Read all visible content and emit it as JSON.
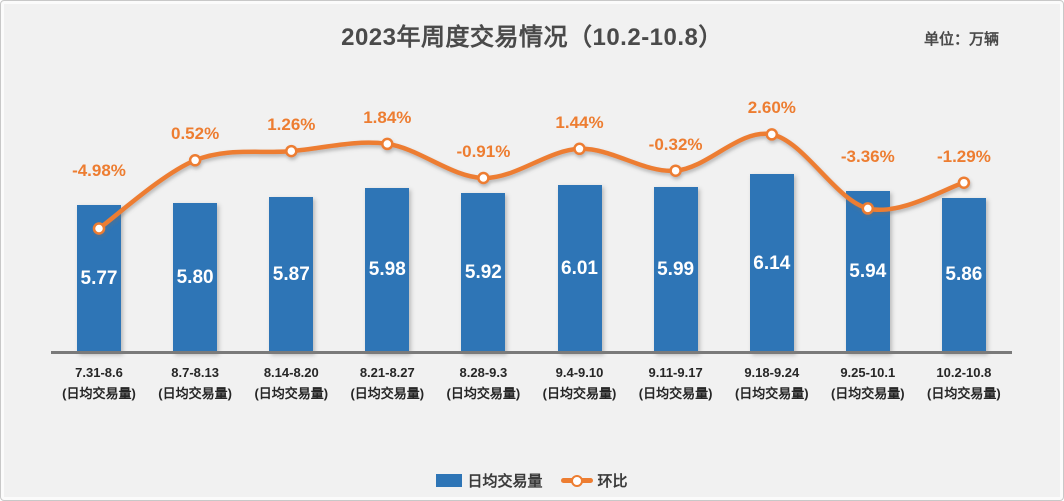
{
  "frame": {
    "title": "2023年周度交易情况（10.2-10.8）",
    "unit_label": "单位：万辆"
  },
  "colors": {
    "background": "#F1F1F1",
    "frame_border": "#C8C8C8",
    "bar": "#2E75B6",
    "bar_label": "#FFFFFF",
    "line": "#ED7D31",
    "marker_fill": "#FFFFFF",
    "pct_label": "#ED7D31",
    "axis": "#7A7A7A",
    "title_text": "#4A4A4A",
    "xlabel_text": "#262626",
    "legend_text": "#3A3A3A"
  },
  "legend": [
    {
      "label": "日均交易量",
      "type": "bar"
    },
    {
      "label": "环比",
      "type": "line"
    }
  ],
  "chart_data": {
    "type": "bar+line",
    "title": "2023年周度交易情况（10.2-10.8）",
    "unit": "万辆",
    "categories": [
      "7.31-8.6",
      "8.7-8.13",
      "8.14-8.20",
      "8.21-8.27",
      "8.28-9.3",
      "9.4-9.10",
      "9.11-9.17",
      "9.18-9.24",
      "9.25-10.1",
      "10.2-10.8"
    ],
    "category_sublabel": "(日均交易量)",
    "series": [
      {
        "name": "日均交易量",
        "type": "bar",
        "color": "#2E75B6",
        "values": [
          5.77,
          5.8,
          5.87,
          5.98,
          5.92,
          6.01,
          5.99,
          6.14,
          5.94,
          5.86
        ],
        "labels": [
          "5.77",
          "5.80",
          "5.87",
          "5.98",
          "5.92",
          "6.01",
          "5.99",
          "6.14",
          "5.94",
          "5.86"
        ]
      },
      {
        "name": "环比",
        "type": "line",
        "color": "#ED7D31",
        "values": [
          -4.98,
          0.52,
          1.26,
          1.84,
          -0.91,
          1.44,
          -0.32,
          2.6,
          -3.36,
          -1.29
        ],
        "labels": [
          "-4.98%",
          "0.52%",
          "1.26%",
          "1.84%",
          "-0.91%",
          "1.44%",
          "-0.32%",
          "2.60%",
          "-3.36%",
          "-1.29%"
        ]
      }
    ],
    "ylim": [
      4.0,
      6.85
    ],
    "y2lim_pct": [
      -5.5,
      3.2
    ],
    "grid": false,
    "legend_position": "bottom",
    "value_label_position": "inside-center",
    "pct_label_position": "above-point"
  }
}
